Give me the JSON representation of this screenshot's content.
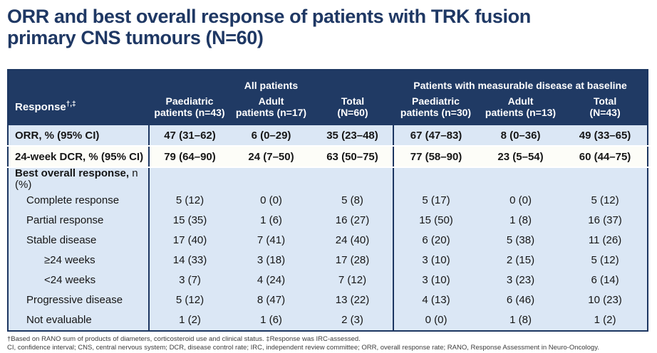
{
  "title": {
    "line1": "ORR and best overall response of patients with TRK fusion",
    "line2": "primary CNS tumours (N=60)"
  },
  "colors": {
    "title_text": "#1f3864",
    "header_bg": "#203a64",
    "header_text": "#ffffff",
    "band_blue": "#dbe7f5",
    "band_white": "#fdfdf8",
    "table_border": "#1c3661"
  },
  "table": {
    "corner": {
      "base": "Response",
      "sup": "†,‡"
    },
    "groups": [
      {
        "label": "All patients"
      },
      {
        "label": "Patients with measurable disease at baseline"
      }
    ],
    "columns": [
      {
        "line1": "Paediatric",
        "line2": "patients (n=43)"
      },
      {
        "line1": "Adult",
        "line2": "patients (n=17)"
      },
      {
        "line1": "Total",
        "line2": "(N=60)"
      },
      {
        "line1": "Paediatric",
        "line2": "patients (n=30)"
      },
      {
        "line1": "Adult",
        "line2": "patients (n=13)"
      },
      {
        "line1": "Total",
        "line2": "(N=43)"
      }
    ],
    "rows": [
      {
        "style": "orr",
        "indent": 0,
        "label_bold": "ORR,",
        "label": " % (95% CI)",
        "values": [
          "47 (31–62)",
          "6 (0–29)",
          "35 (23–48)",
          "67 (47–83)",
          "8 (0–36)",
          "49 (33–65)"
        ]
      },
      {
        "style": "dcr",
        "indent": 0,
        "label_bold": "24-week DCR",
        "label": ", % (95% CI)",
        "values": [
          "79 (64–90)",
          "24 (7–50)",
          "63 (50–75)",
          "77 (58–90)",
          "23 (5–54)",
          "60 (44–75)"
        ]
      },
      {
        "style": "section",
        "indent": 0,
        "label_bold": "Best overall response,",
        "label": " n (%)",
        "values": [
          "",
          "",
          "",
          "",
          "",
          ""
        ]
      },
      {
        "style": "section",
        "indent": 1,
        "label_bold": "",
        "label": "Complete response",
        "values": [
          "5 (12)",
          "0 (0)",
          "5 (8)",
          "5 (17)",
          "0 (0)",
          "5 (12)"
        ]
      },
      {
        "style": "section",
        "indent": 1,
        "label_bold": "",
        "label": "Partial response",
        "values": [
          "15 (35)",
          "1 (6)",
          "16 (27)",
          "15 (50)",
          "1 (8)",
          "16 (37)"
        ]
      },
      {
        "style": "section",
        "indent": 1,
        "label_bold": "",
        "label": "Stable disease",
        "values": [
          "17 (40)",
          "7 (41)",
          "24 (40)",
          "6 (20)",
          "5 (38)",
          "11 (26)"
        ]
      },
      {
        "style": "section",
        "indent": 2,
        "label_bold": "",
        "label": "≥24 weeks",
        "values": [
          "14 (33)",
          "3 (18)",
          "17 (28)",
          "3 (10)",
          "2 (15)",
          "5 (12)"
        ]
      },
      {
        "style": "section",
        "indent": 2,
        "label_bold": "",
        "label": "<24 weeks",
        "values": [
          "3 (7)",
          "4 (24)",
          "7 (12)",
          "3 (10)",
          "3 (23)",
          "6 (14)"
        ]
      },
      {
        "style": "section",
        "indent": 1,
        "label_bold": "",
        "label": "Progressive disease",
        "values": [
          "5 (12)",
          "8 (47)",
          "13 (22)",
          "4 (13)",
          "6 (46)",
          "10 (23)"
        ]
      },
      {
        "style": "section",
        "indent": 1,
        "label_bold": "",
        "label": "Not evaluable",
        "values": [
          "1 (2)",
          "1 (6)",
          "2 (3)",
          "0 (0)",
          "1 (8)",
          "1 (2)"
        ]
      }
    ]
  },
  "footnotes": {
    "line1": "†Based on RANO sum of products of diameters, corticosteroid use and clinical status. ‡Response was IRC-assessed.",
    "line2": "CI, confidence interval; CNS, central nervous system; DCR, disease control rate; IRC, independent review committee; ORR, overall response rate; RANO, Response Assessment in Neuro-Oncology."
  }
}
